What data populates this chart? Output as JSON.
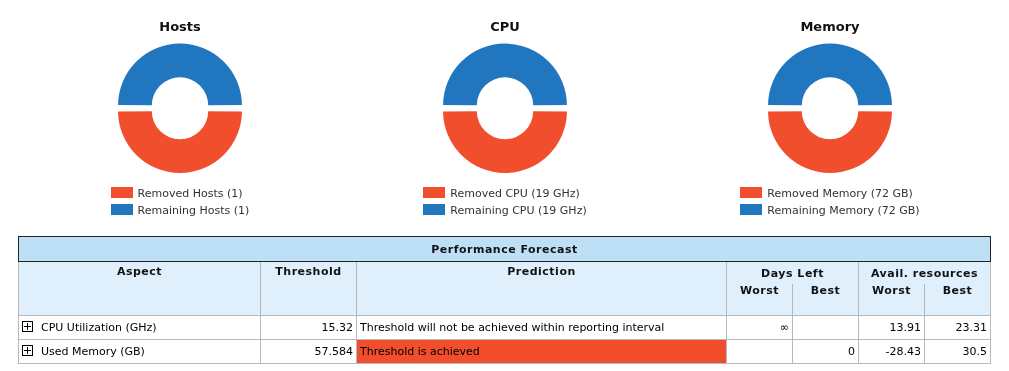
{
  "chart_data": [
    {
      "type": "donut",
      "title": "Hosts",
      "categories": [
        "Removed Hosts (1)",
        "Remaining Hosts (1)"
      ],
      "values": [
        1,
        1
      ],
      "colors": [
        "#f04e2c",
        "#2176c0"
      ],
      "legend": "bottom"
    },
    {
      "type": "donut",
      "title": "CPU",
      "categories": [
        "Removed CPU (19 GHz)",
        "Remaining CPU (19 GHz)"
      ],
      "values": [
        19,
        19
      ],
      "colors": [
        "#f04e2c",
        "#2176c0"
      ],
      "legend": "bottom"
    },
    {
      "type": "donut",
      "title": "Memory",
      "categories": [
        "Removed Memory (72 GB)",
        "Remaining Memory (72 GB)"
      ],
      "values": [
        72,
        72
      ],
      "colors": [
        "#f04e2c",
        "#2176c0"
      ],
      "legend": "bottom"
    },
    {
      "type": "other",
      "title": "Performance Forecast",
      "annotations": [
        "Aspect",
        "Threshold",
        "Prediction",
        "Days Left",
        "Avail. resources",
        "Worst",
        "Best",
        "Worst",
        "Best",
        "CPU Utilization (GHz)",
        "15.32",
        "Threshold will not be achieved within reporting interval",
        "∞",
        "13.91",
        "23.31",
        "Used Memory (GB)",
        "57.584",
        "Threshold is achieved",
        "0",
        "-28.43",
        "30.5"
      ]
    }
  ]
}
